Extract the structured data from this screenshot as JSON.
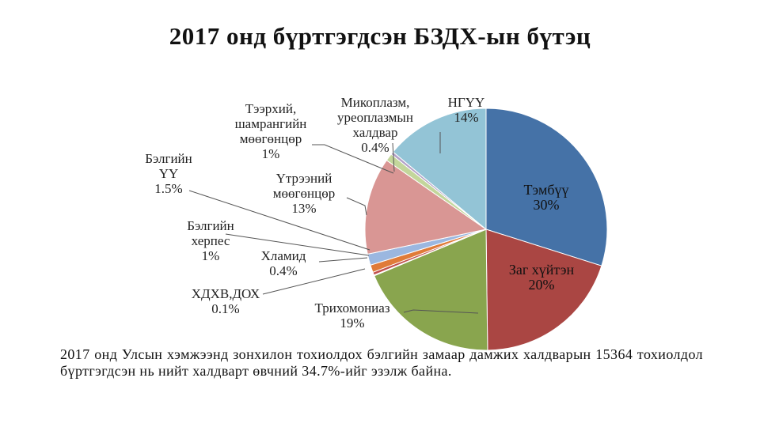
{
  "chart_data": {
    "type": "pie",
    "title": "2017 онд бүртгэгдсэн БЗДХ-ын бүтэц",
    "slices": [
      {
        "name": "Тэмбүү",
        "value": 30,
        "label": "30%",
        "color": "#4572A7"
      },
      {
        "name": "Заг хүйтэн",
        "value": 20,
        "label": "20%",
        "color": "#AA4643"
      },
      {
        "name": "Трихомониаз",
        "value": 19,
        "label": "19%",
        "color": "#89A54E"
      },
      {
        "name": "ХДХВ,ДОХ",
        "value": 0.1,
        "label": "0.1%",
        "color": "#2E5B8A"
      },
      {
        "name": "Хламид",
        "value": 0.4,
        "label": "0.4%",
        "color": "#C0504D"
      },
      {
        "name": "Бэлгийн херпес",
        "value": 1,
        "label": "1%",
        "color": "#E07B39"
      },
      {
        "name": "Бэлгийн ҮҮ",
        "value": 1.5,
        "label": "1.5%",
        "color": "#9BB7E0"
      },
      {
        "name": "Үтрээний мөөгөнцөр",
        "value": 13,
        "label": "13%",
        "color": "#D99694"
      },
      {
        "name": "Тээрхий, шамрангийн мөөгөнцөр",
        "value": 1,
        "label": "1%",
        "color": "#C3D69B"
      },
      {
        "name": "Микоплазм, уреоплазмын халдвар",
        "value": 0.4,
        "label": "0.4%",
        "color": "#B3A2C7"
      },
      {
        "name": "НГҮҮ",
        "value": 14,
        "label": "14%",
        "color": "#93C4D6"
      }
    ]
  },
  "labels": [
    {
      "lines": [
        "Тэмбүү",
        "30%"
      ]
    },
    {
      "lines": [
        "Заг хүйтэн",
        "20%"
      ]
    },
    {
      "lines": [
        "Трихомониаз",
        "19%"
      ]
    },
    {
      "lines": [
        "ХДХВ,ДОХ",
        "0.1%"
      ]
    },
    {
      "lines": [
        "Хламид",
        "0.4%"
      ]
    },
    {
      "lines": [
        "Бэлгийн",
        "херпес",
        "1%"
      ]
    },
    {
      "lines": [
        "Бэлгийн",
        "ҮҮ",
        "1.5%"
      ]
    },
    {
      "lines": [
        "Үтрээний",
        "мөөгөнцөр",
        "13%"
      ]
    },
    {
      "lines": [
        "Тээрхий,",
        "шамрангийн",
        "мөөгөнцөр",
        "1%"
      ]
    },
    {
      "lines": [
        "Микоплазм,",
        "уреоплазмын",
        "халдвар",
        "0.4%"
      ]
    },
    {
      "lines": [
        "НГҮҮ",
        "14%"
      ]
    }
  ],
  "note": "2017 онд Улсын хэмжээнд зонхилон тохиолдох бэлгийн замаар дамжих халдварын 15364 тохиолдол бүртгэгдсэн нь нийт халдварт өвчний 34.7%-ийг эзэлж байна."
}
